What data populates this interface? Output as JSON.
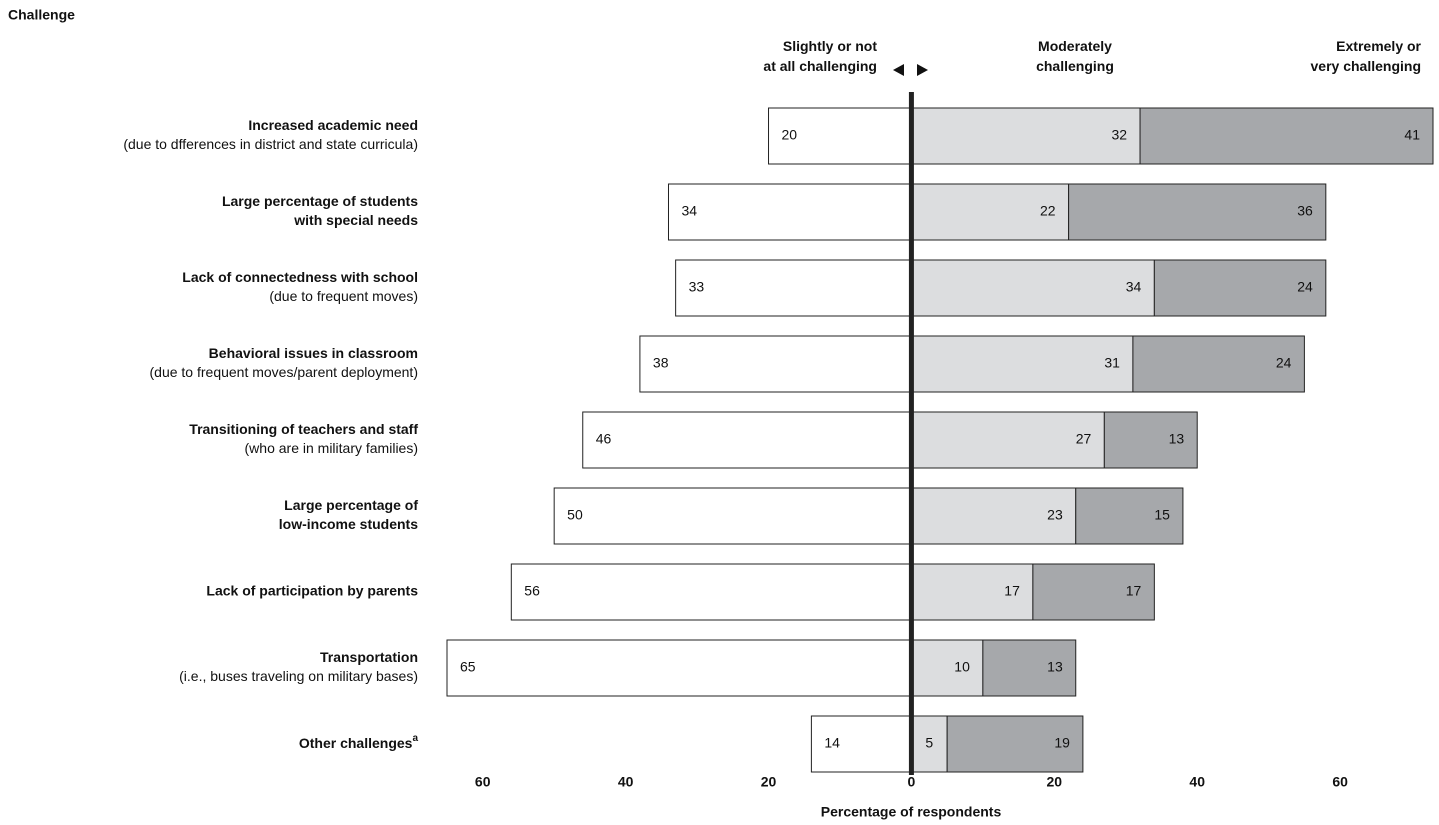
{
  "chart_data": {
    "type": "diverging_bar",
    "y_axis_title": "Challenge",
    "x_axis_title": "Percentage of respondents",
    "categories": [
      [
        "Increased academic need"
      ],
      [
        "Large percentage of students",
        "with special needs"
      ],
      [
        "Lack of connectedness with school"
      ],
      [
        "Behavioral issues in classroom"
      ],
      [
        "Transitioning of teachers and staff"
      ],
      [
        "Large percentage of",
        "low-income students"
      ],
      [
        "Lack of participation by parents"
      ],
      [
        "Transportation"
      ],
      [
        "Other challenges"
      ]
    ],
    "category_notes": [
      "(due to dfferences in district and state curricula)",
      null,
      "(due to frequent moves)",
      "(due to frequent moves/parent deployment)",
      "(who are in military families)",
      null,
      null,
      "(i.e., buses traveling on military bases)",
      null
    ],
    "category_marks": [
      null,
      null,
      null,
      null,
      null,
      null,
      null,
      null,
      "a"
    ],
    "series": [
      {
        "name": "Slightly or not\nat all challenging",
        "side": "left",
        "color": "#ffffff",
        "values": [
          20,
          34,
          33,
          38,
          46,
          50,
          56,
          65,
          14
        ]
      },
      {
        "name": "Moderately\nchallenging",
        "side": "right",
        "color": "#dcdddf",
        "values": [
          32,
          22,
          34,
          31,
          27,
          23,
          17,
          10,
          5
        ]
      },
      {
        "name": "Extremely or\nvery challenging",
        "side": "right",
        "color": "#a6a8ab",
        "values": [
          41,
          36,
          24,
          24,
          13,
          15,
          17,
          13,
          19
        ]
      }
    ],
    "xlim": [
      -65,
      73
    ],
    "xticks": [
      {
        "value": -60,
        "label": "60"
      },
      {
        "value": -40,
        "label": "40"
      },
      {
        "value": -20,
        "label": "20"
      },
      0,
      20,
      40,
      60
    ]
  }
}
